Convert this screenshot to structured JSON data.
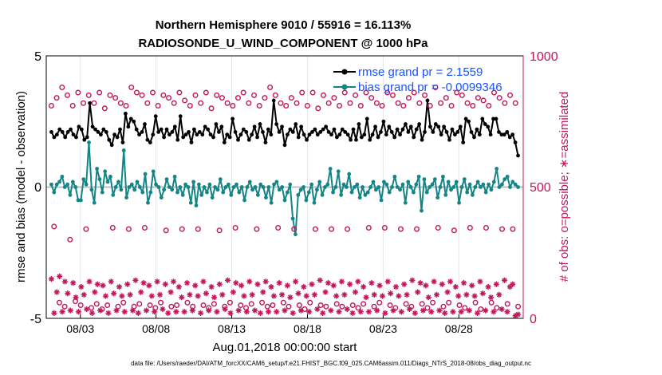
{
  "chart_data": {
    "type": "line",
    "title_line1": "Northern Hemisphere 9010 / 55916 = 16.113%",
    "title_line2": "RADIOSONDE_U_WIND_COMPONENT @ 1000 hPa",
    "ylabel_left": "rmse and bias (model - observation)",
    "ylabel_right": "# of obs: o=possible; ∗=assimilated",
    "xlabel": "Aug.01,2018 00:00:00 start",
    "footer": "data file: /Users/raeder/DAI/ATM_forcXX/CAM6_setup/f.e21.FHIST_BGC.f09_025.CAM6assim.011/Diags_NTrS_2018-08/obs_diag_output.nc",
    "ylim_left": [
      -5,
      5
    ],
    "ylim_right": [
      0,
      1000
    ],
    "yticks_left": [
      "5",
      "0",
      "-5"
    ],
    "yticks_right": [
      "1000",
      "500",
      "0"
    ],
    "x_range_days": [
      0.75,
      32.25
    ],
    "xticks": [
      {
        "day": 3,
        "label": "08/03"
      },
      {
        "day": 8,
        "label": "08/08"
      },
      {
        "day": 13,
        "label": "08/13"
      },
      {
        "day": 18,
        "label": "08/18"
      },
      {
        "day": 23,
        "label": "08/23"
      },
      {
        "day": 28,
        "label": "08/28"
      }
    ],
    "grid": true,
    "legend_position": "top-right",
    "series": [
      {
        "name": "rmse grand pr = 2.1559",
        "axis": "left",
        "color": "#000000",
        "marker": "filled-circle",
        "values": [
          2.1,
          1.9,
          2.0,
          2.2,
          2.1,
          1.9,
          2.1,
          2.2,
          2.0,
          1.9,
          2.3,
          2.2,
          1.8,
          1.9,
          3.2,
          2.3,
          2.2,
          2.1,
          2.0,
          2.2,
          2.1,
          1.8,
          1.6,
          2.0,
          1.9,
          2.2,
          1.7,
          2.8,
          2.3,
          2.6,
          2.5,
          2.2,
          2.0,
          2.1,
          2.4,
          1.8,
          1.7,
          2.0,
          2.7,
          2.1,
          2.2,
          1.9,
          2.2,
          2.0,
          2.1,
          2.3,
          1.8,
          2.7,
          1.9,
          2.0,
          2.1,
          1.7,
          2.2,
          2.0,
          2.1,
          2.0,
          2.3,
          2.2,
          2.0,
          1.9,
          2.4,
          2.1,
          2.3,
          1.7,
          2.0,
          1.9,
          2.6,
          2.1,
          1.8,
          2.0,
          2.2,
          2.1,
          1.8,
          2.0,
          2.3,
          1.9,
          2.4,
          2.1,
          1.7,
          2.2,
          2.0,
          3.3,
          2.4,
          2.1,
          2.3,
          1.6,
          2.0,
          2.2,
          2.1,
          2.4,
          1.9,
          2.3,
          2.0,
          1.8,
          2.0,
          2.1,
          2.2,
          2.0,
          2.1,
          2.2,
          2.3,
          2.1,
          2.0,
          2.2,
          1.9,
          2.0,
          2.2,
          2.1,
          2.0,
          1.8,
          2.2,
          1.8,
          2.4,
          1.9,
          2.0,
          2.6,
          1.8,
          2.0,
          2.3,
          1.9,
          2.1,
          2.5,
          2.0,
          2.3,
          2.1,
          1.9,
          2.2,
          2.0,
          2.2,
          2.4,
          2.1,
          2.3,
          1.9,
          2.2,
          2.4,
          1.8,
          2.1,
          3.3,
          2.3,
          2.1,
          2.4,
          2.3,
          2.0,
          2.3,
          2.1,
          1.8,
          2.2,
          2.0,
          2.1,
          2.3,
          1.7,
          2.6,
          2.5,
          2.1,
          1.9,
          2.2,
          2.0,
          2.6,
          2.4,
          2.3,
          2.0,
          2.6,
          2.6,
          2.1,
          2.0,
          2.0,
          2.1,
          1.9,
          2.0,
          1.7,
          1.2
        ]
      },
      {
        "name": "bias grand pr = -0.0099346",
        "axis": "left",
        "color": "#138586",
        "marker": "filled-circle",
        "values": [
          0.1,
          -0.2,
          0.1,
          0.2,
          0.4,
          0.0,
          0.1,
          -0.3,
          0.2,
          0.0,
          -0.5,
          -0.5,
          0.3,
          0.1,
          1.7,
          -0.1,
          -0.6,
          0.7,
          0.3,
          -0.2,
          0.6,
          0.2,
          0.4,
          -0.3,
          0.0,
          0.2,
          -0.1,
          1.4,
          -0.4,
          0.0,
          0.1,
          -0.1,
          0.2,
          0.0,
          -0.2,
          0.5,
          -0.6,
          -0.2,
          0.6,
          0.1,
          0.0,
          -0.4,
          -0.1,
          0.3,
          0.0,
          -0.1,
          0.4,
          -0.2,
          0.0,
          -0.3,
          0.1,
          0.0,
          -0.6,
          0.2,
          -0.7,
          0.1,
          -0.3,
          0.0,
          -0.2,
          0.1,
          -0.4,
          0.0,
          -0.1,
          0.3,
          -0.2,
          0.0,
          0.1,
          -0.3,
          0.0,
          0.1,
          -0.2,
          0.0,
          -0.5,
          0.0,
          0.2,
          -0.1,
          0.0,
          -0.3,
          0.1,
          0.0,
          -0.4,
          0.0,
          -0.6,
          0.1,
          0.2,
          -0.1,
          0.0,
          -0.5,
          -0.2,
          0.1,
          -1.2,
          -1.8,
          -0.3,
          -0.1,
          0.0,
          -0.5,
          -0.2,
          0.1,
          -0.6,
          -0.1,
          0.2,
          -0.3,
          0.0,
          0.1,
          0.7,
          -0.2,
          0.0,
          0.6,
          -0.3,
          0.1,
          0.0,
          0.5,
          -0.2,
          0.0,
          0.1,
          -0.4,
          0.0,
          -0.3,
          -0.2,
          0.0,
          0.2,
          -0.1,
          0.0,
          -0.5,
          0.2,
          0.1,
          -0.2,
          0.0,
          0.4,
          0.0,
          -0.1,
          0.1,
          -0.6,
          0.2,
          0.0,
          -0.2,
          0.1,
          0.4,
          -0.9,
          0.3,
          -0.2,
          0.0,
          0.1,
          0.3,
          -0.4,
          0.0,
          0.4,
          -0.3,
          0.2,
          -0.1,
          0.0,
          0.2,
          -0.6,
          0.0,
          0.3,
          -0.2,
          0.1,
          -0.3,
          0.0,
          0.2,
          0.0,
          0.1,
          -0.2,
          0.1,
          -0.1,
          0.2,
          0.7,
          0.0,
          0.1,
          0.3,
          0.4,
          0.0,
          0.2,
          0.1,
          0.0
        ]
      },
      {
        "name": "possible",
        "axis": "right",
        "color": "#c2185b",
        "marker": "open-circle",
        "values": [
          810,
          350,
          840,
          60,
          880,
          45,
          850,
          300,
          810,
          65,
          860,
          50,
          820,
          340,
          850,
          40,
          820,
          55,
          860,
          35,
          800,
          50,
          850,
          345,
          840,
          45,
          820,
          60,
          810,
          340,
          880,
          45,
          860,
          55,
          850,
          345,
          820,
          50,
          860,
          40,
          810,
          60,
          850,
          335,
          840,
          45,
          820,
          50,
          860,
          340,
          830,
          60,
          810,
          45,
          850,
          340,
          820,
          50,
          860,
          40,
          800,
          55,
          850,
          335,
          840,
          45,
          820,
          60,
          810,
          345,
          840,
          50,
          860,
          40,
          820,
          55,
          850,
          340,
          810,
          60,
          840,
          45,
          880,
          50,
          850,
          345,
          820,
          60,
          810,
          45,
          840,
          340,
          820,
          50,
          860,
          35,
          810,
          60,
          860,
          340,
          800,
          50,
          850,
          45,
          820,
          340,
          840,
          55,
          810,
          45,
          860,
          340,
          820,
          50,
          850,
          40,
          810,
          55,
          860,
          345,
          840,
          45,
          820,
          60,
          810,
          345,
          860,
          50,
          850,
          40,
          820,
          340,
          810,
          55,
          840,
          45,
          860,
          340,
          820,
          55,
          850,
          40,
          810,
          60,
          880,
          345,
          820,
          45,
          840,
          60,
          810,
          335,
          860,
          50,
          850,
          40,
          820,
          345,
          810,
          60,
          840,
          35,
          830,
          345,
          810,
          60,
          860,
          40,
          840,
          340,
          820,
          55,
          850,
          340,
          820,
          45
        ]
      },
      {
        "name": "assimilated",
        "axis": "right",
        "color": "#c2185b",
        "marker": "asterisk",
        "values": [
          150,
          20,
          100,
          160,
          25,
          140,
          95,
          30,
          135,
          80,
          25,
          120,
          90,
          35,
          140,
          20,
          100,
          130,
          30,
          125,
          85,
          20,
          140,
          95,
          30,
          120,
          85,
          25,
          130,
          90,
          30,
          145,
          20,
          100,
          135,
          30,
          125,
          85,
          25,
          140,
          90,
          35,
          130,
          20,
          100,
          140,
          25,
          120,
          80,
          25,
          135,
          90,
          30,
          125,
          85,
          20,
          140,
          95,
          30,
          120,
          80,
          25,
          130,
          90,
          35,
          145,
          20,
          100,
          135,
          30,
          125,
          85,
          25,
          140,
          90,
          30,
          130,
          20,
          100,
          140,
          25,
          120,
          85,
          25,
          135,
          90,
          30,
          125,
          80,
          20,
          140,
          95,
          30,
          120,
          85,
          25,
          130,
          90,
          35,
          145,
          20,
          100,
          135,
          30,
          125,
          85,
          25,
          140,
          90,
          35,
          130,
          20,
          100,
          140,
          25,
          120,
          80,
          25,
          135,
          90,
          30,
          125,
          85,
          20,
          140,
          95,
          30,
          120,
          85,
          25,
          130,
          90,
          35,
          145,
          20,
          100,
          135,
          30,
          125,
          80,
          25,
          140,
          90,
          30,
          130,
          20,
          100,
          140,
          25,
          120,
          85,
          25,
          135,
          90,
          30,
          125,
          85,
          20,
          140,
          95,
          30,
          120,
          80,
          25,
          130,
          90,
          35,
          145,
          25,
          120,
          130,
          10,
          15
        ]
      }
    ]
  },
  "colors": {
    "rmse": "#000000",
    "bias": "#138586",
    "obs": "#c2185b",
    "legend_text": "#1a53ff",
    "zero_line": "#bfbfbf",
    "grid": "#e6e6e6"
  }
}
